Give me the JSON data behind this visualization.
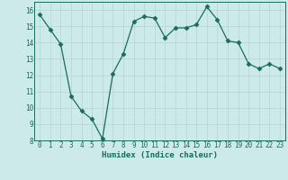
{
  "x": [
    0,
    1,
    2,
    3,
    4,
    5,
    6,
    7,
    8,
    9,
    10,
    11,
    12,
    13,
    14,
    15,
    16,
    17,
    18,
    19,
    20,
    21,
    22,
    23
  ],
  "y": [
    15.7,
    14.8,
    13.9,
    10.7,
    9.8,
    9.3,
    8.1,
    12.1,
    13.3,
    15.3,
    15.6,
    15.5,
    14.3,
    14.9,
    14.9,
    15.1,
    16.2,
    15.4,
    14.1,
    14.0,
    12.7,
    12.4,
    12.7,
    12.4
  ],
  "xlabel": "Humidex (Indice chaleur)",
  "ylim": [
    8,
    16.5
  ],
  "xlim": [
    -0.5,
    23.5
  ],
  "yticks": [
    8,
    9,
    10,
    11,
    12,
    13,
    14,
    15,
    16
  ],
  "xticks": [
    0,
    1,
    2,
    3,
    4,
    5,
    6,
    7,
    8,
    9,
    10,
    11,
    12,
    13,
    14,
    15,
    16,
    17,
    18,
    19,
    20,
    21,
    22,
    23
  ],
  "line_color": "#1a6b5a",
  "marker": "D",
  "marker_size": 2.5,
  "bg_color": "#cdeaea",
  "grid_color": "#b8d8d8",
  "xlabel_fontsize": 6.5,
  "tick_fontsize": 5.5
}
